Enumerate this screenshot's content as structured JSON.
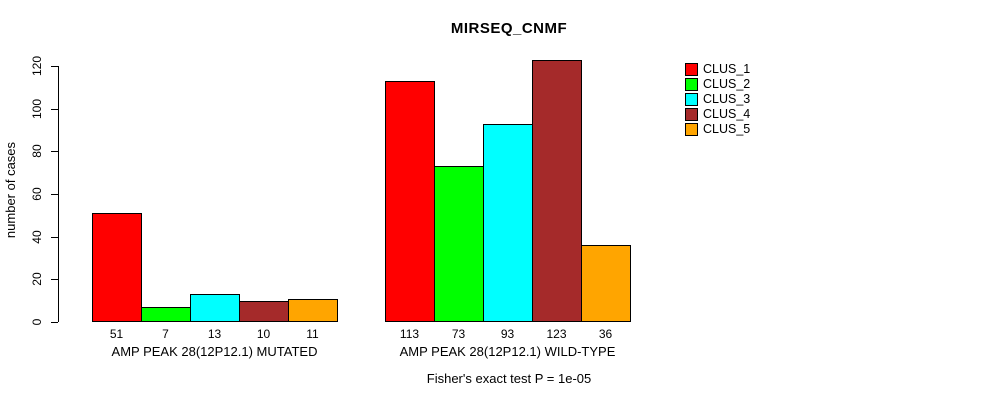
{
  "chart_data": {
    "type": "bar",
    "title": "MIRSEQ_CNMF",
    "ylabel": "number of cases",
    "xlabel": "",
    "ylim": [
      0,
      120
    ],
    "yticks": [
      0,
      20,
      40,
      60,
      80,
      100,
      120
    ],
    "grid": false,
    "legend_position": "right",
    "bar_border_color": "#000000",
    "groups": [
      {
        "label": "AMP PEAK 28(12P12.1) MUTATED",
        "values": [
          51,
          7,
          13,
          10,
          11
        ]
      },
      {
        "label": "AMP PEAK 28(12P12.1) WILD-TYPE",
        "values": [
          113,
          73,
          93,
          123,
          36
        ]
      }
    ],
    "series": [
      {
        "name": "CLUS_1",
        "color": "#FF0000",
        "values": [
          51,
          113
        ]
      },
      {
        "name": "CLUS_2",
        "color": "#00FF00",
        "values": [
          7,
          73
        ]
      },
      {
        "name": "CLUS_3",
        "color": "#00FFFF",
        "values": [
          13,
          93
        ]
      },
      {
        "name": "CLUS_4",
        "color": "#A52A2A",
        "values": [
          10,
          123
        ]
      },
      {
        "name": "CLUS_5",
        "color": "#FFA500",
        "values": [
          11,
          36
        ]
      }
    ],
    "annotation": "Fisher's exact test P = 1e-05"
  }
}
